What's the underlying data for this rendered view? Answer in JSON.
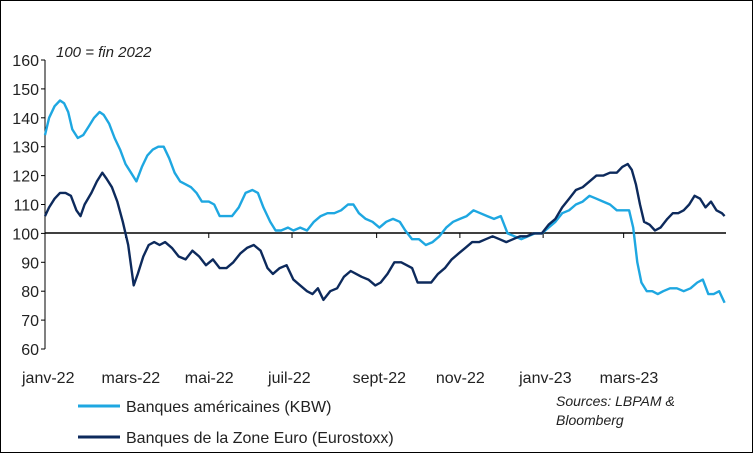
{
  "chart_data": {
    "type": "line",
    "title": "",
    "subtitle": "100 = fin 2022",
    "xlabel": "",
    "ylabel": "",
    "ylim": [
      60,
      160
    ],
    "y_ticks": [
      60,
      70,
      80,
      90,
      100,
      110,
      120,
      130,
      140,
      150,
      160
    ],
    "x_ticks": [
      "janv-22",
      "mars-22",
      "mai-22",
      "juil-22",
      "sept-22",
      "nov-22",
      "janv-23",
      "mars-23"
    ],
    "reference_line": 100,
    "grid": false,
    "legend_position": "bottom-left",
    "source": "Sources: LBPAM & Bloomberg",
    "series": [
      {
        "name": "Banques américaines (KBW)",
        "color": "#1ea7e1",
        "points": [
          [
            "2022-01-01",
            134
          ],
          [
            "2022-01-04",
            140
          ],
          [
            "2022-01-08",
            144
          ],
          [
            "2022-01-12",
            146
          ],
          [
            "2022-01-15",
            145
          ],
          [
            "2022-01-18",
            142
          ],
          [
            "2022-01-21",
            136
          ],
          [
            "2022-01-25",
            133
          ],
          [
            "2022-01-29",
            134
          ],
          [
            "2022-02-02",
            137
          ],
          [
            "2022-02-06",
            140
          ],
          [
            "2022-02-10",
            142
          ],
          [
            "2022-02-13",
            141
          ],
          [
            "2022-02-17",
            138
          ],
          [
            "2022-02-21",
            133
          ],
          [
            "2022-02-25",
            129
          ],
          [
            "2022-03-01",
            124
          ],
          [
            "2022-03-05",
            121
          ],
          [
            "2022-03-09",
            118
          ],
          [
            "2022-03-13",
            123
          ],
          [
            "2022-03-17",
            127
          ],
          [
            "2022-03-21",
            129
          ],
          [
            "2022-03-25",
            130
          ],
          [
            "2022-03-29",
            130
          ],
          [
            "2022-04-02",
            126
          ],
          [
            "2022-04-06",
            121
          ],
          [
            "2022-04-10",
            118
          ],
          [
            "2022-04-14",
            117
          ],
          [
            "2022-04-18",
            116
          ],
          [
            "2022-04-22",
            114
          ],
          [
            "2022-04-26",
            111
          ],
          [
            "2022-05-01",
            111
          ],
          [
            "2022-05-05",
            110
          ],
          [
            "2022-05-09",
            106
          ],
          [
            "2022-05-13",
            106
          ],
          [
            "2022-05-18",
            106
          ],
          [
            "2022-05-23",
            109
          ],
          [
            "2022-05-28",
            114
          ],
          [
            "2022-06-02",
            115
          ],
          [
            "2022-06-06",
            114
          ],
          [
            "2022-06-10",
            109
          ],
          [
            "2022-06-15",
            104
          ],
          [
            "2022-06-19",
            101
          ],
          [
            "2022-06-23",
            101
          ],
          [
            "2022-06-28",
            102
          ],
          [
            "2022-07-02",
            101
          ],
          [
            "2022-07-07",
            102
          ],
          [
            "2022-07-12",
            101
          ],
          [
            "2022-07-17",
            104
          ],
          [
            "2022-07-22",
            106
          ],
          [
            "2022-07-27",
            107
          ],
          [
            "2022-08-01",
            107
          ],
          [
            "2022-08-06",
            108
          ],
          [
            "2022-08-11",
            110
          ],
          [
            "2022-08-15",
            110
          ],
          [
            "2022-08-19",
            107
          ],
          [
            "2022-08-24",
            105
          ],
          [
            "2022-08-29",
            104
          ],
          [
            "2022-09-03",
            102
          ],
          [
            "2022-09-08",
            104
          ],
          [
            "2022-09-13",
            105
          ],
          [
            "2022-09-18",
            104
          ],
          [
            "2022-09-22",
            101
          ],
          [
            "2022-09-27",
            98
          ],
          [
            "2022-10-02",
            98
          ],
          [
            "2022-10-07",
            96
          ],
          [
            "2022-10-12",
            97
          ],
          [
            "2022-10-17",
            99
          ],
          [
            "2022-10-22",
            102
          ],
          [
            "2022-10-27",
            104
          ],
          [
            "2022-11-01",
            105
          ],
          [
            "2022-11-06",
            106
          ],
          [
            "2022-11-11",
            108
          ],
          [
            "2022-11-16",
            107
          ],
          [
            "2022-11-21",
            106
          ],
          [
            "2022-11-26",
            105
          ],
          [
            "2022-12-01",
            106
          ],
          [
            "2022-12-06",
            100
          ],
          [
            "2022-12-11",
            99
          ],
          [
            "2022-12-16",
            98
          ],
          [
            "2022-12-21",
            99
          ],
          [
            "2022-12-26",
            100
          ],
          [
            "2022-12-31",
            100
          ],
          [
            "2023-01-05",
            102
          ],
          [
            "2023-01-10",
            104
          ],
          [
            "2023-01-15",
            107
          ],
          [
            "2023-01-20",
            108
          ],
          [
            "2023-01-25",
            110
          ],
          [
            "2023-01-30",
            111
          ],
          [
            "2023-02-04",
            113
          ],
          [
            "2023-02-09",
            112
          ],
          [
            "2023-02-14",
            111
          ],
          [
            "2023-02-19",
            110
          ],
          [
            "2023-02-24",
            108
          ],
          [
            "2023-03-01",
            108
          ],
          [
            "2023-03-05",
            108
          ],
          [
            "2023-03-08",
            102
          ],
          [
            "2023-03-11",
            90
          ],
          [
            "2023-03-14",
            83
          ],
          [
            "2023-03-18",
            80
          ],
          [
            "2023-03-22",
            80
          ],
          [
            "2023-03-26",
            79
          ],
          [
            "2023-03-30",
            80
          ],
          [
            "2023-04-04",
            81
          ],
          [
            "2023-04-09",
            81
          ],
          [
            "2023-04-14",
            80
          ],
          [
            "2023-04-19",
            81
          ],
          [
            "2023-04-24",
            83
          ],
          [
            "2023-04-28",
            84
          ],
          [
            "2023-05-02",
            79
          ],
          [
            "2023-05-06",
            79
          ],
          [
            "2023-05-10",
            80
          ],
          [
            "2023-05-14",
            76
          ]
        ]
      },
      {
        "name": "Banques de la Zone Euro (Eurostoxx)",
        "color": "#0d2a5c",
        "points": [
          [
            "2022-01-01",
            106
          ],
          [
            "2022-01-04",
            109
          ],
          [
            "2022-01-08",
            112
          ],
          [
            "2022-01-12",
            114
          ],
          [
            "2022-01-16",
            114
          ],
          [
            "2022-01-20",
            113
          ],
          [
            "2022-01-24",
            108
          ],
          [
            "2022-01-27",
            106
          ],
          [
            "2022-01-30",
            110
          ],
          [
            "2022-02-04",
            114
          ],
          [
            "2022-02-08",
            118
          ],
          [
            "2022-02-12",
            121
          ],
          [
            "2022-02-15",
            119
          ],
          [
            "2022-02-19",
            116
          ],
          [
            "2022-02-23",
            111
          ],
          [
            "2022-02-27",
            104
          ],
          [
            "2022-03-03",
            96
          ],
          [
            "2022-03-07",
            82
          ],
          [
            "2022-03-10",
            86
          ],
          [
            "2022-03-14",
            92
          ],
          [
            "2022-03-18",
            96
          ],
          [
            "2022-03-22",
            97
          ],
          [
            "2022-03-26",
            96
          ],
          [
            "2022-03-30",
            97
          ],
          [
            "2022-04-04",
            95
          ],
          [
            "2022-04-09",
            92
          ],
          [
            "2022-04-14",
            91
          ],
          [
            "2022-04-19",
            94
          ],
          [
            "2022-04-24",
            92
          ],
          [
            "2022-04-29",
            89
          ],
          [
            "2022-05-04",
            91
          ],
          [
            "2022-05-09",
            88
          ],
          [
            "2022-05-14",
            88
          ],
          [
            "2022-05-19",
            90
          ],
          [
            "2022-05-24",
            93
          ],
          [
            "2022-05-29",
            95
          ],
          [
            "2022-06-03",
            96
          ],
          [
            "2022-06-08",
            94
          ],
          [
            "2022-06-13",
            88
          ],
          [
            "2022-06-17",
            86
          ],
          [
            "2022-06-22",
            88
          ],
          [
            "2022-06-27",
            89
          ],
          [
            "2022-07-02",
            84
          ],
          [
            "2022-07-07",
            82
          ],
          [
            "2022-07-12",
            80
          ],
          [
            "2022-07-16",
            79
          ],
          [
            "2022-07-20",
            81
          ],
          [
            "2022-07-24",
            77
          ],
          [
            "2022-07-29",
            80
          ],
          [
            "2022-08-03",
            81
          ],
          [
            "2022-08-08",
            85
          ],
          [
            "2022-08-13",
            87
          ],
          [
            "2022-08-17",
            86
          ],
          [
            "2022-08-21",
            85
          ],
          [
            "2022-08-26",
            84
          ],
          [
            "2022-08-31",
            82
          ],
          [
            "2022-09-04",
            83
          ],
          [
            "2022-09-09",
            86
          ],
          [
            "2022-09-14",
            90
          ],
          [
            "2022-09-19",
            90
          ],
          [
            "2022-09-23",
            89
          ],
          [
            "2022-09-27",
            88
          ],
          [
            "2022-10-01",
            83
          ],
          [
            "2022-10-06",
            83
          ],
          [
            "2022-10-11",
            83
          ],
          [
            "2022-10-16",
            86
          ],
          [
            "2022-10-21",
            88
          ],
          [
            "2022-10-26",
            91
          ],
          [
            "2022-10-31",
            93
          ],
          [
            "2022-11-05",
            95
          ],
          [
            "2022-11-10",
            97
          ],
          [
            "2022-11-15",
            97
          ],
          [
            "2022-11-20",
            98
          ],
          [
            "2022-11-25",
            99
          ],
          [
            "2022-11-30",
            98
          ],
          [
            "2022-12-05",
            97
          ],
          [
            "2022-12-10",
            98
          ],
          [
            "2022-12-15",
            99
          ],
          [
            "2022-12-20",
            99
          ],
          [
            "2022-12-25",
            100
          ],
          [
            "2022-12-31",
            100
          ],
          [
            "2023-01-05",
            103
          ],
          [
            "2023-01-10",
            105
          ],
          [
            "2023-01-15",
            109
          ],
          [
            "2023-01-20",
            112
          ],
          [
            "2023-01-25",
            115
          ],
          [
            "2023-01-30",
            116
          ],
          [
            "2023-02-04",
            118
          ],
          [
            "2023-02-09",
            120
          ],
          [
            "2023-02-14",
            120
          ],
          [
            "2023-02-19",
            121
          ],
          [
            "2023-02-24",
            121
          ],
          [
            "2023-02-28",
            123
          ],
          [
            "2023-03-04",
            124
          ],
          [
            "2023-03-07",
            122
          ],
          [
            "2023-03-10",
            117
          ],
          [
            "2023-03-13",
            110
          ],
          [
            "2023-03-16",
            104
          ],
          [
            "2023-03-20",
            103
          ],
          [
            "2023-03-24",
            101
          ],
          [
            "2023-03-28",
            102
          ],
          [
            "2023-04-02",
            105
          ],
          [
            "2023-04-06",
            107
          ],
          [
            "2023-04-10",
            107
          ],
          [
            "2023-04-14",
            108
          ],
          [
            "2023-04-18",
            110
          ],
          [
            "2023-04-22",
            113
          ],
          [
            "2023-04-26",
            112
          ],
          [
            "2023-04-30",
            109
          ],
          [
            "2023-05-04",
            111
          ],
          [
            "2023-05-08",
            108
          ],
          [
            "2023-05-12",
            107
          ],
          [
            "2023-05-14",
            106
          ]
        ]
      }
    ]
  }
}
